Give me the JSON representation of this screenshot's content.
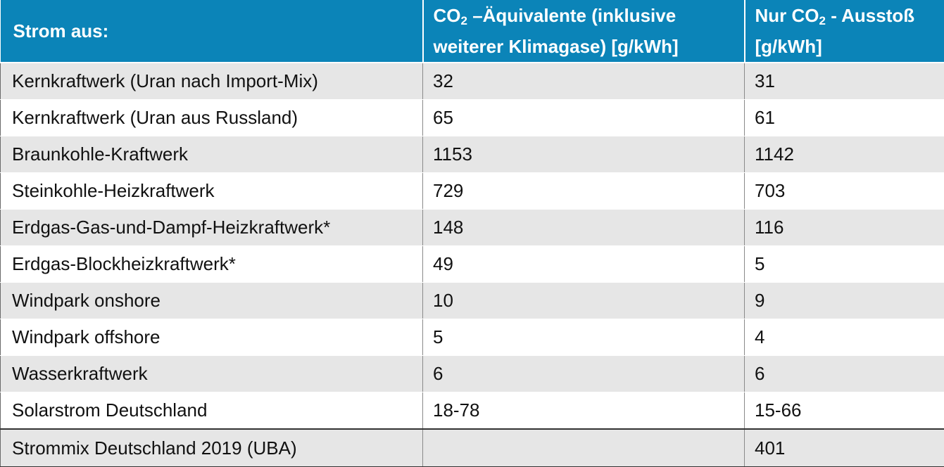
{
  "table": {
    "header": {
      "col1": "Strom aus:",
      "col2": {
        "prefix": "CO",
        "sub": "2",
        "rest": " –Äquivalente (inklusive weiterer Klimagase) [g/kWh]"
      },
      "col3": {
        "prefix": "Nur CO",
        "sub": "2",
        "rest": " - Ausstoß [g/kWh]"
      }
    },
    "rows": [
      {
        "source": "Kernkraftwerk (Uran nach Import-Mix)",
        "co2eq": "32",
        "co2": "31"
      },
      {
        "source": "Kernkraftwerk (Uran aus Russland)",
        "co2eq": "65",
        "co2": "61"
      },
      {
        "source": "Braunkohle-Kraftwerk",
        "co2eq": "1153",
        "co2": "1142"
      },
      {
        "source": "Steinkohle-Heizkraftwerk",
        "co2eq": "729",
        "co2": "703"
      },
      {
        "source": "Erdgas-Gas-und-Dampf-Heizkraftwerk*",
        "co2eq": "148",
        "co2": "116"
      },
      {
        "source": "Erdgas-Blockheizkraftwerk*",
        "co2eq": "49",
        "co2": "5"
      },
      {
        "source": "Windpark onshore",
        "co2eq": "10",
        "co2": "9"
      },
      {
        "source": "Windpark offshore",
        "co2eq": "5",
        "co2": "4"
      },
      {
        "source": "Wasserkraftwerk",
        "co2eq": "6",
        "co2": "6"
      },
      {
        "source": "Solarstrom Deutschland",
        "co2eq": "18-78",
        "co2": "15-66"
      }
    ],
    "summary": {
      "source": "Strommix Deutschland 2019 (UBA)",
      "co2eq": "",
      "co2": "401"
    }
  },
  "colors": {
    "header_bg": "#0b84b8",
    "stripe": "#e6e6e6"
  }
}
